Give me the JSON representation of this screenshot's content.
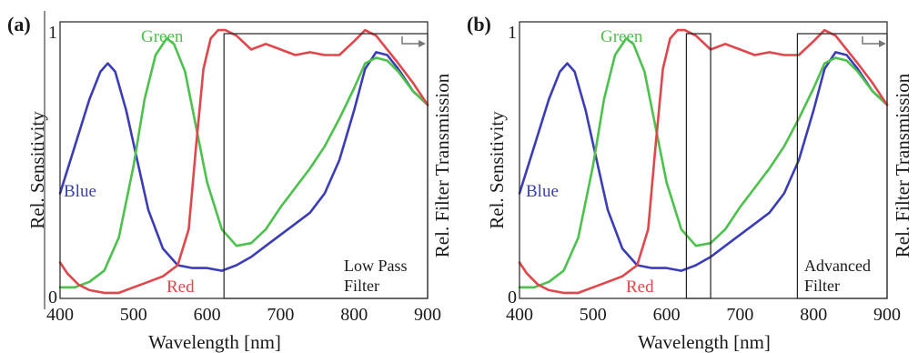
{
  "colors": {
    "blue": "#3b3db8",
    "green": "#4cc24c",
    "red": "#e0474c",
    "filter": "#222222",
    "arrow": "#777777"
  },
  "chart_data": [
    {
      "panel_label": "(a)",
      "type": "line",
      "xlabel": "Wavelength [nm]",
      "ylabel_left": "Rel. Sensitivity",
      "ylabel_right": "Rel. Filter Transmission",
      "xlim": [
        400,
        900
      ],
      "ylim": [
        0,
        1
      ],
      "xticks": [
        "400",
        "500",
        "600",
        "700",
        "800",
        "900"
      ],
      "yticks": [
        "0",
        "1"
      ],
      "filter_label": [
        "Low Pass",
        "Filter"
      ],
      "filter_windows": [
        [
          623,
          900
        ]
      ],
      "series": [
        {
          "name": "Blue",
          "color_key": "blue",
          "x": [
            400,
            420,
            440,
            455,
            465,
            475,
            490,
            505,
            520,
            540,
            560,
            580,
            600,
            620,
            640,
            660,
            680,
            700,
            720,
            740,
            760,
            780,
            800,
            815,
            830,
            845,
            860,
            880,
            900
          ],
          "y": [
            0.38,
            0.55,
            0.72,
            0.82,
            0.85,
            0.82,
            0.68,
            0.5,
            0.32,
            0.18,
            0.12,
            0.11,
            0.11,
            0.1,
            0.12,
            0.15,
            0.19,
            0.23,
            0.27,
            0.31,
            0.38,
            0.5,
            0.68,
            0.83,
            0.89,
            0.88,
            0.83,
            0.75,
            0.7
          ]
        },
        {
          "name": "Green",
          "color_key": "green",
          "x": [
            400,
            420,
            440,
            460,
            480,
            500,
            515,
            530,
            545,
            555,
            570,
            585,
            600,
            620,
            640,
            660,
            680,
            700,
            720,
            740,
            760,
            780,
            800,
            815,
            830,
            845,
            860,
            880,
            900
          ],
          "y": [
            0.04,
            0.04,
            0.06,
            0.1,
            0.22,
            0.48,
            0.72,
            0.88,
            0.94,
            0.92,
            0.82,
            0.62,
            0.42,
            0.25,
            0.19,
            0.2,
            0.25,
            0.33,
            0.4,
            0.47,
            0.55,
            0.65,
            0.76,
            0.85,
            0.87,
            0.86,
            0.82,
            0.75,
            0.7
          ]
        },
        {
          "name": "Red",
          "color_key": "red",
          "x": [
            400,
            410,
            425,
            440,
            460,
            480,
            500,
            520,
            540,
            560,
            575,
            585,
            595,
            605,
            615,
            625,
            640,
            660,
            680,
            700,
            720,
            740,
            760,
            780,
            800,
            815,
            830,
            845,
            860,
            880,
            900
          ],
          "y": [
            0.13,
            0.09,
            0.05,
            0.03,
            0.02,
            0.02,
            0.04,
            0.06,
            0.08,
            0.12,
            0.25,
            0.55,
            0.83,
            0.94,
            0.97,
            0.97,
            0.95,
            0.9,
            0.92,
            0.9,
            0.88,
            0.89,
            0.88,
            0.88,
            0.93,
            0.97,
            0.95,
            0.9,
            0.85,
            0.78,
            0.7
          ]
        }
      ]
    },
    {
      "panel_label": "(b)",
      "type": "line",
      "xlabel": "Wavelength [nm]",
      "ylabel_left": "Rel. Sensitivity",
      "ylabel_right": "Rel. Filter Transmission",
      "xlim": [
        400,
        900
      ],
      "ylim": [
        0,
        1
      ],
      "xticks": [
        "400",
        "500",
        "600",
        "700",
        "800",
        "900"
      ],
      "yticks": [
        "0",
        "1"
      ],
      "filter_label": [
        "Advanced",
        "Filter"
      ],
      "filter_windows": [
        [
          627,
          660
        ],
        [
          778,
          900
        ]
      ],
      "series": [
        {
          "name": "Blue",
          "color_key": "blue",
          "x": [
            400,
            420,
            440,
            455,
            465,
            475,
            490,
            505,
            520,
            540,
            560,
            580,
            600,
            620,
            640,
            660,
            680,
            700,
            720,
            740,
            760,
            780,
            800,
            815,
            830,
            845,
            860,
            880,
            900
          ],
          "y": [
            0.38,
            0.55,
            0.72,
            0.82,
            0.85,
            0.82,
            0.68,
            0.5,
            0.32,
            0.18,
            0.12,
            0.11,
            0.11,
            0.1,
            0.12,
            0.15,
            0.19,
            0.23,
            0.27,
            0.31,
            0.38,
            0.5,
            0.68,
            0.83,
            0.89,
            0.88,
            0.83,
            0.75,
            0.7
          ]
        },
        {
          "name": "Green",
          "color_key": "green",
          "x": [
            400,
            420,
            440,
            460,
            480,
            500,
            515,
            530,
            545,
            555,
            570,
            585,
            600,
            620,
            640,
            660,
            680,
            700,
            720,
            740,
            760,
            780,
            800,
            815,
            830,
            845,
            860,
            880,
            900
          ],
          "y": [
            0.04,
            0.04,
            0.06,
            0.1,
            0.22,
            0.48,
            0.72,
            0.88,
            0.94,
            0.92,
            0.82,
            0.62,
            0.42,
            0.25,
            0.19,
            0.2,
            0.25,
            0.33,
            0.4,
            0.47,
            0.55,
            0.65,
            0.76,
            0.85,
            0.87,
            0.86,
            0.82,
            0.75,
            0.7
          ]
        },
        {
          "name": "Red",
          "color_key": "red",
          "x": [
            400,
            410,
            425,
            440,
            460,
            480,
            500,
            520,
            540,
            560,
            575,
            585,
            595,
            605,
            615,
            625,
            640,
            660,
            680,
            700,
            720,
            740,
            760,
            780,
            800,
            815,
            830,
            845,
            860,
            880,
            900
          ],
          "y": [
            0.13,
            0.09,
            0.05,
            0.03,
            0.02,
            0.02,
            0.04,
            0.06,
            0.08,
            0.12,
            0.25,
            0.55,
            0.83,
            0.94,
            0.97,
            0.97,
            0.95,
            0.9,
            0.92,
            0.9,
            0.88,
            0.89,
            0.88,
            0.88,
            0.93,
            0.97,
            0.95,
            0.9,
            0.85,
            0.78,
            0.7
          ]
        }
      ]
    }
  ]
}
